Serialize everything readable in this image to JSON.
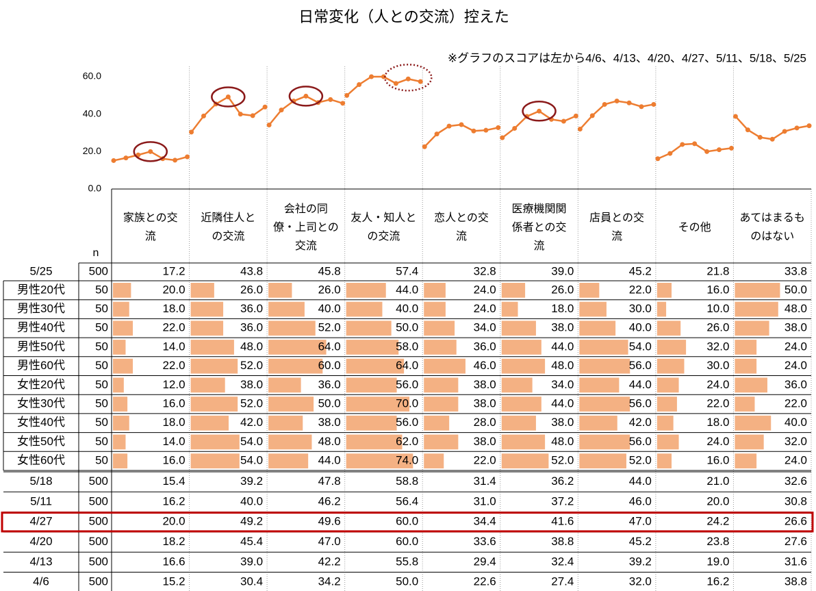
{
  "chart_data": {
    "type": "line",
    "title": "日常変化（人との交流）控えた",
    "note": "※グラフのスコアは左から4/6、4/13、4/20、4/27、5/11、5/18、5/25",
    "ylim": [
      0,
      60
    ],
    "yticks": [
      {
        "value": 0,
        "label": "0.0"
      },
      {
        "value": 20,
        "label": "20.0"
      },
      {
        "value": 40,
        "label": "40.0"
      },
      {
        "value": 60,
        "label": "60.0"
      }
    ],
    "x": [
      "4/6",
      "4/13",
      "4/20",
      "4/27",
      "5/11",
      "5/18",
      "5/25"
    ],
    "n": [
      500,
      500,
      500,
      500,
      500,
      500,
      500
    ],
    "color": "#ed7d31",
    "series": [
      {
        "name": "家族との交\n流",
        "values": [
          15.2,
          16.6,
          18.2,
          20,
          16.2,
          15.4,
          17.2
        ],
        "value_labels": [
          "15.2",
          "16.6",
          "18.2",
          "20.0",
          "16.2",
          "15.4",
          "17.2"
        ]
      },
      {
        "name": "近隣住人と\nの交流",
        "values": [
          30.4,
          39,
          45.4,
          49.2,
          40,
          39.2,
          43.8
        ],
        "value_labels": [
          "30.4",
          "39.0",
          "45.4",
          "49.2",
          "40.0",
          "39.2",
          "43.8"
        ]
      },
      {
        "name": "会社の同\n僚・上司との\n交流",
        "values": [
          34.2,
          42.2,
          47,
          49.6,
          46.2,
          47.8,
          45.8
        ],
        "value_labels": [
          "34.2",
          "42.2",
          "47.0",
          "49.6",
          "46.2",
          "47.8",
          "45.8"
        ]
      },
      {
        "name": "友人・知人と\nの交流",
        "values": [
          50,
          55.8,
          60,
          60,
          56.4,
          58.8,
          57.4
        ],
        "value_labels": [
          "50.0",
          "55.8",
          "60.0",
          "60.0",
          "56.4",
          "58.8",
          "57.4"
        ]
      },
      {
        "name": "恋人との交\n流",
        "values": [
          22.6,
          29.4,
          33.6,
          34.4,
          31,
          31.4,
          32.8
        ],
        "value_labels": [
          "22.6",
          "29.4",
          "33.6",
          "34.4",
          "31.0",
          "31.4",
          "32.8"
        ]
      },
      {
        "name": "医療機関関\n係者との交\n流",
        "values": [
          27.4,
          32.4,
          38.8,
          41.6,
          37.2,
          36.2,
          39
        ],
        "value_labels": [
          "27.4",
          "32.4",
          "38.8",
          "41.6",
          "37.2",
          "36.2",
          "39.0"
        ]
      },
      {
        "name": "店員との交\n流",
        "values": [
          32,
          39.2,
          45.2,
          47,
          46,
          44,
          45.2
        ],
        "value_labels": [
          "32.0",
          "39.2",
          "45.2",
          "47.0",
          "46.0",
          "44.0",
          "45.2"
        ]
      },
      {
        "name": "その他",
        "values": [
          16.2,
          19,
          23.8,
          24.2,
          20,
          21,
          21.8
        ],
        "value_labels": [
          "16.2",
          "19.0",
          "23.8",
          "24.2",
          "20.0",
          "21.0",
          "21.8"
        ]
      },
      {
        "name": "あてはまるも\nのはない",
        "values": [
          38.8,
          31.6,
          27.6,
          26.6,
          30.8,
          32.6,
          33.8
        ],
        "value_labels": [
          "38.8",
          "31.6",
          "27.6",
          "26.6",
          "30.8",
          "32.6",
          "33.8"
        ]
      }
    ]
  },
  "table": {
    "n_header": "n",
    "bar_color": "#f4b183",
    "rows": [
      {
        "label": "男性20代",
        "n": 50,
        "values": [
          20,
          26,
          26,
          44,
          24,
          26,
          22,
          16,
          50
        ],
        "value_labels": [
          "20.0",
          "26.0",
          "26.0",
          "44.0",
          "24.0",
          "26.0",
          "22.0",
          "16.0",
          "50.0"
        ]
      },
      {
        "label": "男性30代",
        "n": 50,
        "values": [
          18,
          36,
          40,
          40,
          24,
          18,
          30,
          10,
          48
        ],
        "value_labels": [
          "18.0",
          "36.0",
          "40.0",
          "40.0",
          "24.0",
          "18.0",
          "30.0",
          "10.0",
          "48.0"
        ]
      },
      {
        "label": "男性40代",
        "n": 50,
        "values": [
          22,
          36,
          52,
          50,
          34,
          38,
          40,
          26,
          38
        ],
        "value_labels": [
          "22.0",
          "36.0",
          "52.0",
          "50.0",
          "34.0",
          "38.0",
          "40.0",
          "26.0",
          "38.0"
        ]
      },
      {
        "label": "男性50代",
        "n": 50,
        "values": [
          14,
          48,
          64,
          58,
          36,
          44,
          54,
          32,
          24
        ],
        "value_labels": [
          "14.0",
          "48.0",
          "64.0",
          "58.0",
          "36.0",
          "44.0",
          "54.0",
          "32.0",
          "24.0"
        ]
      },
      {
        "label": "男性60代",
        "n": 50,
        "values": [
          22,
          52,
          60,
          64,
          46,
          48,
          56,
          30,
          24
        ],
        "value_labels": [
          "22.0",
          "52.0",
          "60.0",
          "64.0",
          "46.0",
          "48.0",
          "56.0",
          "30.0",
          "24.0"
        ]
      },
      {
        "label": "女性20代",
        "n": 50,
        "values": [
          12,
          38,
          36,
          56,
          38,
          34,
          44,
          24,
          36
        ],
        "value_labels": [
          "12.0",
          "38.0",
          "36.0",
          "56.0",
          "38.0",
          "34.0",
          "44.0",
          "24.0",
          "36.0"
        ]
      },
      {
        "label": "女性30代",
        "n": 50,
        "values": [
          16,
          52,
          50,
          70,
          38,
          44,
          56,
          22,
          22
        ],
        "value_labels": [
          "16.0",
          "52.0",
          "50.0",
          "70.0",
          "38.0",
          "44.0",
          "56.0",
          "22.0",
          "22.0"
        ]
      },
      {
        "label": "女性40代",
        "n": 50,
        "values": [
          18,
          42,
          38,
          56,
          28,
          38,
          42,
          18,
          40
        ],
        "value_labels": [
          "18.0",
          "42.0",
          "38.0",
          "56.0",
          "28.0",
          "38.0",
          "42.0",
          "18.0",
          "40.0"
        ]
      },
      {
        "label": "女性50代",
        "n": 50,
        "values": [
          14,
          54,
          48,
          62,
          38,
          48,
          56,
          24,
          32
        ],
        "value_labels": [
          "14.0",
          "54.0",
          "48.0",
          "62.0",
          "38.0",
          "48.0",
          "56.0",
          "24.0",
          "32.0"
        ]
      },
      {
        "label": "女性60代",
        "n": 50,
        "values": [
          16,
          54,
          44,
          74,
          22,
          52,
          52,
          16,
          24
        ],
        "value_labels": [
          "16.0",
          "54.0",
          "44.0",
          "74.0",
          "22.0",
          "52.0",
          "52.0",
          "16.0",
          "24.0"
        ]
      }
    ]
  }
}
